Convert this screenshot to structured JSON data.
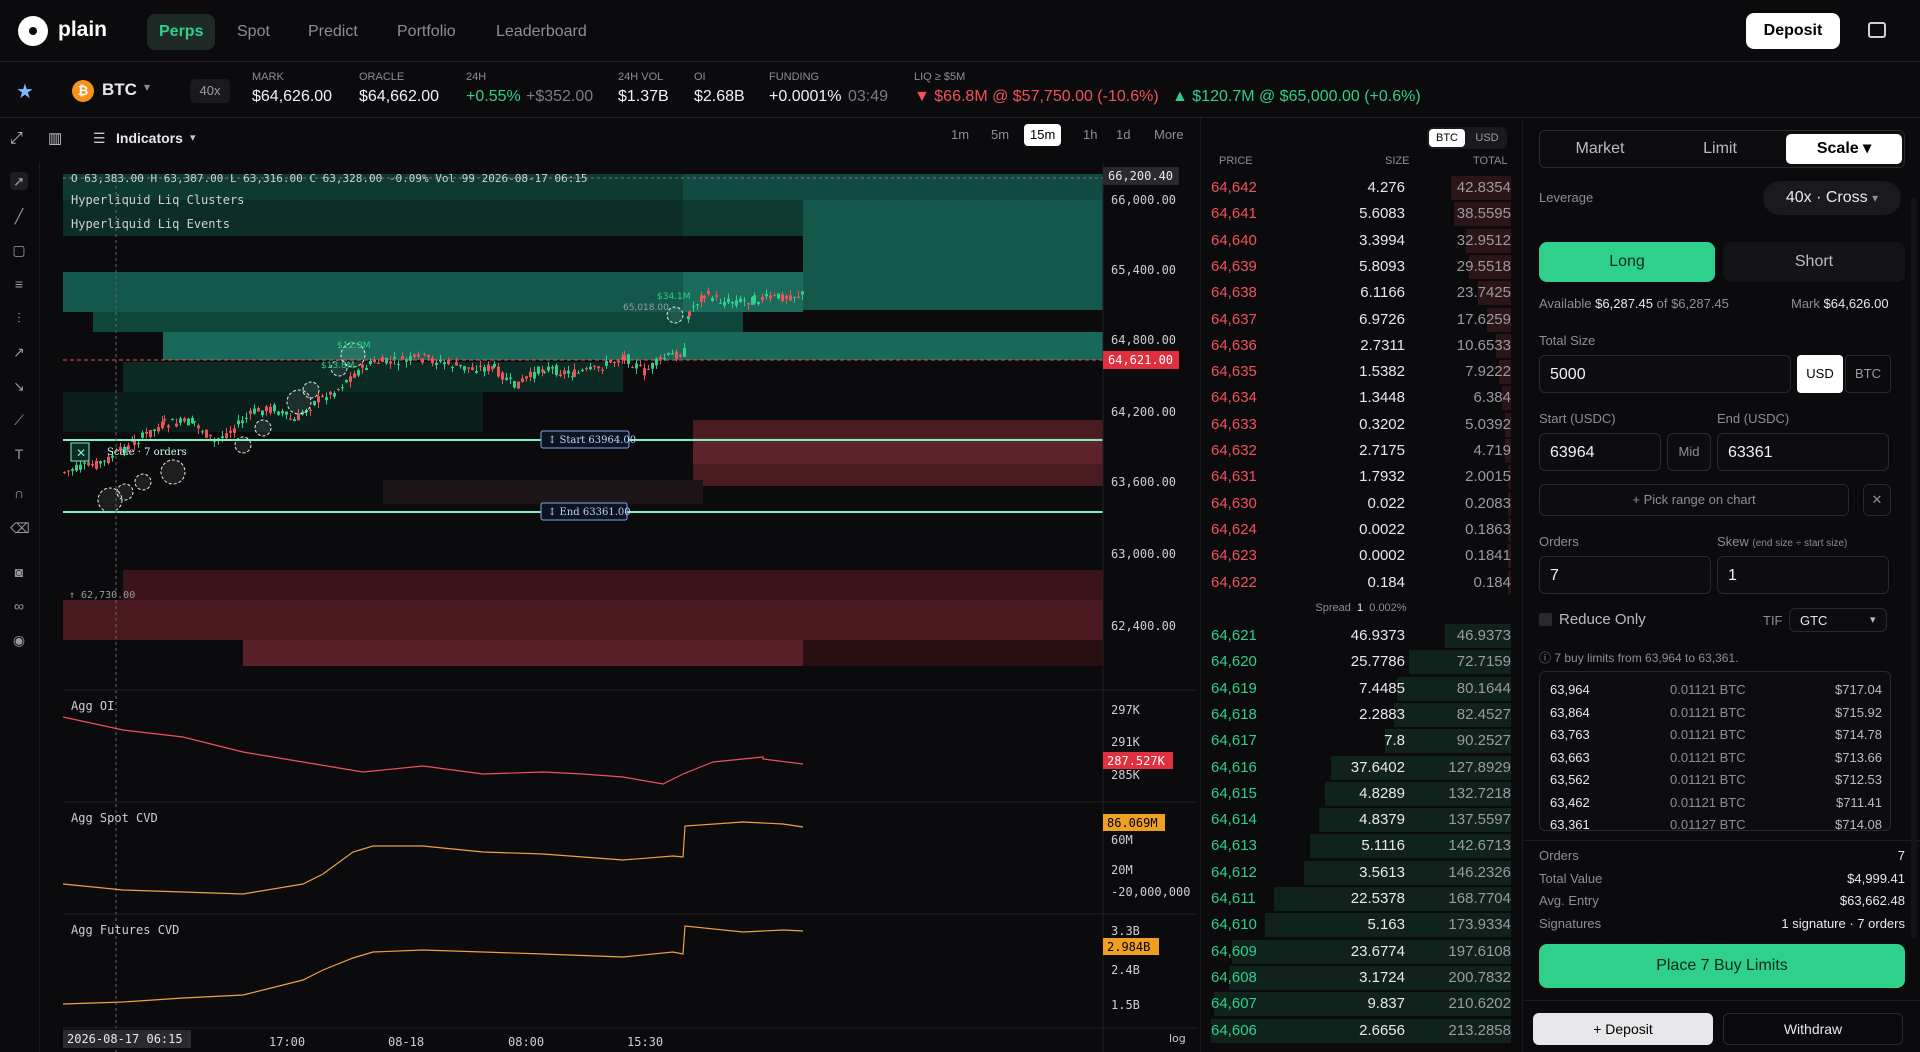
{
  "nav": {
    "brand": "plain",
    "tabs": [
      "Perps",
      "Spot",
      "Predict",
      "Portfolio",
      "Leaderboard"
    ],
    "deposit": "Deposit"
  },
  "ticker": {
    "symbol": "BTC",
    "leverage": "40x",
    "mark_label": "MARK",
    "mark": "$64,626.00",
    "oracle_label": "ORACLE",
    "oracle": "$64,662.00",
    "h24_label": "24H",
    "h24_pct": "+0.55%",
    "h24_abs": "+$352.00",
    "vol_label": "24H VOL",
    "vol": "$1.37B",
    "oi_label": "OI",
    "oi": "$2.68B",
    "funding_label": "FUNDING",
    "funding": "+0.0001%",
    "funding_time": "03:49",
    "liq_label": "LIQ ≥ $5M",
    "liq_down": "▼ $66.8M @ $57,750.00 (-10.6%)",
    "liq_up": "▲ $120.7M @ $65,000.00 (+0.6%)"
  },
  "chart": {
    "indicators": "Indicators",
    "timeframes": [
      "1m",
      "5m",
      "15m",
      "1h",
      "1d",
      "More"
    ],
    "active_tf": "15m",
    "ohlc": "O 63,383.00  H 63,387.00  L 63,316.00  C 63,328.00  -0.09%  Vol 99  2026-08-17 06:15",
    "layer1": "Hyperliquid Liq Clusters",
    "layer2": "Hyperliquid Liq Events",
    "price_ticks": [
      "66,000.00",
      "65,400.00",
      "64,800.00",
      "64,200.00",
      "63,600.00",
      "63,000.00",
      "62,400.00"
    ],
    "price_top": "66,200.40",
    "price_current": "64,621.00",
    "scale_label": "Scale · 7 orders",
    "start_label": "↕ Start 63964.00",
    "end_label": "↕ End 63361.00",
    "low_label": "↑ 62,730.00",
    "marker_labels": [
      "$34.1M",
      "65,018.00",
      "$12.9M",
      "$13.8M"
    ],
    "pane_oi": "Agg OI",
    "oi_ticks": [
      "297K",
      "291K",
      "285K"
    ],
    "oi_current": "287.527K",
    "pane_spot": "Agg Spot CVD",
    "spot_ticks": [
      "60M",
      "20M",
      "-20,000,000"
    ],
    "spot_current": "86.069M",
    "pane_fut": "Agg Futures CVD",
    "fut_ticks": [
      "3.3B",
      "2.4B",
      "1.5B"
    ],
    "fut_current": "2.984B",
    "time_ticks": [
      "17:00",
      "08-18",
      "08:00",
      "15:30"
    ],
    "time_cursor": "2026-08-17 06:15",
    "log": "log"
  },
  "orderbook": {
    "units": [
      "BTC",
      "USD"
    ],
    "headers": [
      "PRICE",
      "SIZE",
      "TOTAL"
    ],
    "asks": [
      [
        "64,642",
        "4.276",
        "42.8354"
      ],
      [
        "64,641",
        "5.6083",
        "38.5595"
      ],
      [
        "64,640",
        "3.3994",
        "32.9512"
      ],
      [
        "64,639",
        "5.8093",
        "29.5518"
      ],
      [
        "64,638",
        "6.1166",
        "23.7425"
      ],
      [
        "64,637",
        "6.9726",
        "17.6259"
      ],
      [
        "64,636",
        "2.7311",
        "10.6533"
      ],
      [
        "64,635",
        "1.5382",
        "7.9222"
      ],
      [
        "64,634",
        "1.3448",
        "6.384"
      ],
      [
        "64,633",
        "0.3202",
        "5.0392"
      ],
      [
        "64,632",
        "2.7175",
        "4.719"
      ],
      [
        "64,631",
        "1.7932",
        "2.0015"
      ],
      [
        "64,630",
        "0.022",
        "0.2083"
      ],
      [
        "64,624",
        "0.0022",
        "0.1863"
      ],
      [
        "64,623",
        "0.0002",
        "0.1841"
      ],
      [
        "64,622",
        "0.184",
        "0.184"
      ]
    ],
    "spread_label": "Spread",
    "spread_val": "1",
    "spread_pct": "0.002%",
    "bids": [
      [
        "64,621",
        "46.9373",
        "46.9373"
      ],
      [
        "64,620",
        "25.7786",
        "72.7159"
      ],
      [
        "64,619",
        "7.4485",
        "80.1644"
      ],
      [
        "64,618",
        "2.2883",
        "82.4527"
      ],
      [
        "64,617",
        "7.8",
        "90.2527"
      ],
      [
        "64,616",
        "37.6402",
        "127.8929"
      ],
      [
        "64,615",
        "4.8289",
        "132.7218"
      ],
      [
        "64,614",
        "4.8379",
        "137.5597"
      ],
      [
        "64,613",
        "5.1116",
        "142.6713"
      ],
      [
        "64,612",
        "3.5613",
        "146.2326"
      ],
      [
        "64,611",
        "22.5378",
        "168.7704"
      ],
      [
        "64,610",
        "5.163",
        "173.9334"
      ],
      [
        "64,609",
        "23.6774",
        "197.6108"
      ],
      [
        "64,608",
        "3.1724",
        "200.7832"
      ],
      [
        "64,607",
        "9.837",
        "210.6202"
      ],
      [
        "64,606",
        "2.6656",
        "213.2858"
      ]
    ],
    "ask_fill": [
      0.2,
      0.19,
      0.15,
      0.14,
      0.11,
      0.08,
      0.05,
      0.04,
      0.03,
      0.02,
      0.02,
      0.01,
      0.01,
      0.01,
      0.01,
      0.01
    ],
    "bid_fill": [
      0.22,
      0.34,
      0.38,
      0.39,
      0.42,
      0.6,
      0.62,
      0.64,
      0.67,
      0.69,
      0.79,
      0.82,
      0.93,
      0.94,
      0.99,
      1.0
    ]
  },
  "panel": {
    "types": [
      "Market",
      "Limit",
      "Scale ▾"
    ],
    "leverage_label": "Leverage",
    "leverage_val": "40x · Cross",
    "long": "Long",
    "short": "Short",
    "available_label": "Available",
    "available": "$6,287.45",
    "of": "of $6,287.45",
    "mark_label": "Mark",
    "mark": "$64,626.00",
    "size_label": "Total Size",
    "size": "5000",
    "size_units": [
      "USD",
      "BTC"
    ],
    "start_label": "Start (USDC)",
    "start": "63964",
    "mid": "Mid",
    "end_label": "End (USDC)",
    "end": "63361",
    "pick": "+ Pick range on chart",
    "orders_label": "Orders",
    "orders": "7",
    "skew_label": "Skew",
    "skew_hint": "(end size ÷ start size)",
    "skew": "1",
    "reduce": "Reduce Only",
    "tif_label": "TIF",
    "tif": "GTC",
    "info": "ⓘ 7 buy limits from 63,964 to 63,361.",
    "ladder": [
      [
        "63,964",
        "0.01121 BTC",
        "$717.04"
      ],
      [
        "63,864",
        "0.01121 BTC",
        "$715.92"
      ],
      [
        "63,763",
        "0.01121 BTC",
        "$714.78"
      ],
      [
        "63,663",
        "0.01121 BTC",
        "$713.66"
      ],
      [
        "63,562",
        "0.01121 BTC",
        "$712.53"
      ],
      [
        "63,462",
        "0.01121 BTC",
        "$711.41"
      ],
      [
        "63,361",
        "0.01127 BTC",
        "$714.08"
      ]
    ],
    "summary": [
      [
        "Orders",
        "7"
      ],
      [
        "Total Value",
        "$4,999.41"
      ],
      [
        "Avg. Entry",
        "$63,662.48"
      ],
      [
        "Signatures",
        "1 signature · 7 orders"
      ]
    ],
    "place": "Place 7 Buy Limits",
    "deposit": "+ Deposit",
    "withdraw": "Withdraw"
  },
  "colors": {
    "accent": "#2ed08b",
    "ask": "#f0525a",
    "bid": "#2ed08b"
  }
}
